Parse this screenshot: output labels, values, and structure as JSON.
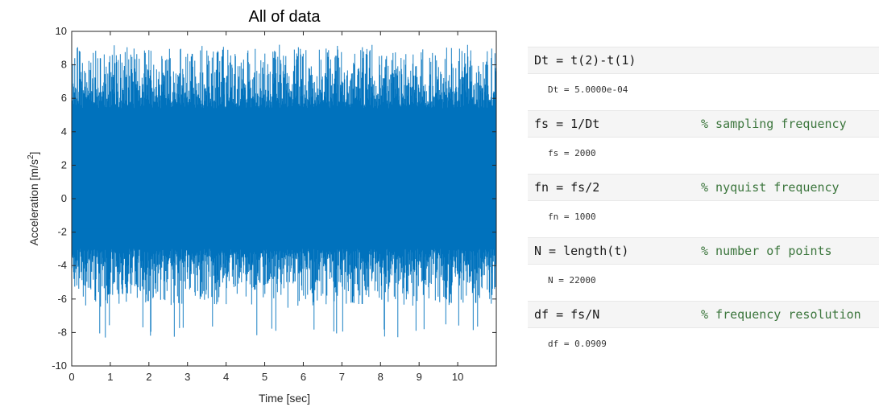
{
  "chart_data": {
    "type": "line",
    "title": "All of data",
    "xlabel": "Time [sec]",
    "ylabel_main": "Acceleration [m/s",
    "ylabel_sup": "2",
    "ylabel_end": "]",
    "xlim": [
      0,
      11
    ],
    "ylim": [
      -10,
      10
    ],
    "x_ticks": [
      "0",
      "1",
      "2",
      "3",
      "4",
      "5",
      "6",
      "7",
      "8",
      "9",
      "10"
    ],
    "y_ticks": [
      "10",
      "8",
      "6",
      "4",
      "2",
      "0",
      "-2",
      "-4",
      "-6",
      "-8",
      "-10"
    ],
    "series": [
      {
        "color": "#0072bd",
        "mean": 1.2,
        "approx_max": 9.2,
        "approx_min": -8.3,
        "sample_interval": 0.0005,
        "num_points": 22000
      }
    ],
    "grid": false
  },
  "code": [
    {
      "line": "Dt = t(2)-t(1)",
      "comment": "",
      "output": "Dt = 5.0000e-04"
    },
    {
      "line": "fs = 1/Dt",
      "comment": "% sampling frequency",
      "output": "fs = 2000"
    },
    {
      "line": "fn = fs/2",
      "comment": "% nyquist frequency",
      "output": "fn = 1000"
    },
    {
      "line": "N = length(t)",
      "comment": "% number of points",
      "output": "N = 22000"
    },
    {
      "line": "df = fs/N",
      "comment": "% frequency resolution",
      "output": "df = 0.0909"
    }
  ],
  "colors": {
    "accent": "#0072bd",
    "comment": "#3c763d",
    "code_bg": "#f5f5f5"
  }
}
